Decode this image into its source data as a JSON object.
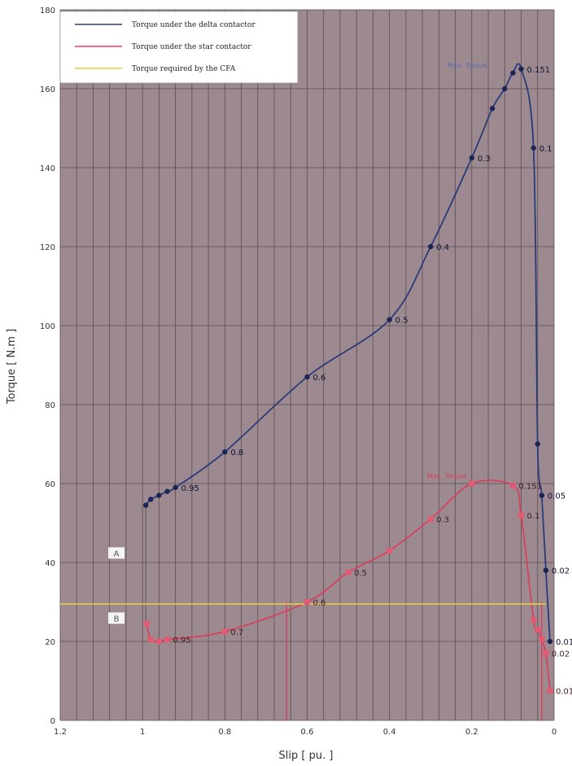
{
  "chart_data": {
    "type": "line",
    "xlabel": "Slip [ pu. ]",
    "ylabel": "Torque [ N.m ]",
    "xlim": [
      1.2,
      0
    ],
    "ylim": [
      0,
      180
    ],
    "x_ticks": [
      "1.2",
      "1",
      "0.8",
      "0.6",
      "0.4",
      "0.2",
      "0"
    ],
    "y_ticks": [
      "0",
      "20",
      "40",
      "60",
      "80",
      "100",
      "120",
      "140",
      "160",
      "180"
    ],
    "legend": [
      "Torque under the delta contactor",
      "Torque under the star contactor",
      "Torque required by the CFA"
    ],
    "legend_position": "top-left",
    "grid": true,
    "series": [
      {
        "name": "Torque under the delta contactor",
        "color": "#2b3a78",
        "x": [
          0.992,
          0.98,
          0.96,
          0.94,
          0.92,
          0.8,
          0.6,
          0.4,
          0.3,
          0.2,
          0.15,
          0.12,
          0.1,
          0.08,
          0.05,
          0.04,
          0.03,
          0.02,
          0.01
        ],
        "y": [
          54.5,
          56,
          57,
          58,
          59,
          68,
          87,
          101.5,
          120,
          142.5,
          155,
          160,
          164,
          165,
          145,
          70,
          57,
          38,
          20
        ],
        "point_labels": [
          {
            "x": 0.92,
            "y": 59,
            "text": "0.95"
          },
          {
            "x": 0.8,
            "y": 68,
            "text": "0.8"
          },
          {
            "x": 0.6,
            "y": 87,
            "text": "0.6"
          },
          {
            "x": 0.4,
            "y": 101.5,
            "text": "0.5"
          },
          {
            "x": 0.3,
            "y": 120,
            "text": "0.4"
          },
          {
            "x": 0.2,
            "y": 142.5,
            "text": "0.3"
          },
          {
            "x": 0.08,
            "y": 165,
            "text": "0.151"
          },
          {
            "x": 0.05,
            "y": 145,
            "text": "0.1"
          },
          {
            "x": 0.03,
            "y": 57,
            "text": "0.05"
          },
          {
            "x": 0.02,
            "y": 38,
            "text": "0.02"
          },
          {
            "x": 0.01,
            "y": 20,
            "text": "0.01"
          }
        ]
      },
      {
        "name": "Torque under the star contactor",
        "color": "#d6425e",
        "x": [
          0.99,
          0.98,
          0.96,
          0.94,
          0.8,
          0.6,
          0.5,
          0.4,
          0.3,
          0.2,
          0.1,
          0.08,
          0.05,
          0.04,
          0.03,
          0.02,
          0.01
        ],
        "y": [
          24.5,
          20.5,
          20,
          20.5,
          22.5,
          30,
          37.5,
          43,
          51,
          60,
          59.5,
          52,
          25.5,
          23,
          20.5,
          17,
          7.5
        ],
        "point_labels": [
          {
            "x": 0.94,
            "y": 20.5,
            "text": "0.95"
          },
          {
            "x": 0.8,
            "y": 22.5,
            "text": "0.7"
          },
          {
            "x": 0.6,
            "y": 30,
            "text": "0.6"
          },
          {
            "x": 0.5,
            "y": 37.5,
            "text": "0.5"
          },
          {
            "x": 0.3,
            "y": 51,
            "text": "0.3"
          },
          {
            "x": 0.1,
            "y": 59.5,
            "text": "0.151"
          },
          {
            "x": 0.08,
            "y": 52,
            "text": "0.1"
          },
          {
            "x": 0.02,
            "y": 17,
            "text": "0.02"
          },
          {
            "x": 0.01,
            "y": 7.5,
            "text": "0.01"
          }
        ]
      },
      {
        "name": "Torque required by the CFA",
        "color": "#e8cc3a",
        "x": [
          1.2,
          0.02
        ],
        "y": [
          29.5,
          29.5
        ]
      }
    ],
    "annotations": [
      {
        "text": "A",
        "x": 1.02,
        "y": 42
      },
      {
        "text": "B",
        "x": 1.02,
        "y": 25.5
      },
      {
        "text": "Max. Torque",
        "x": 0.1,
        "y": 166
      },
      {
        "text": "Max. Torque",
        "x": 0.15,
        "y": 62
      }
    ]
  }
}
